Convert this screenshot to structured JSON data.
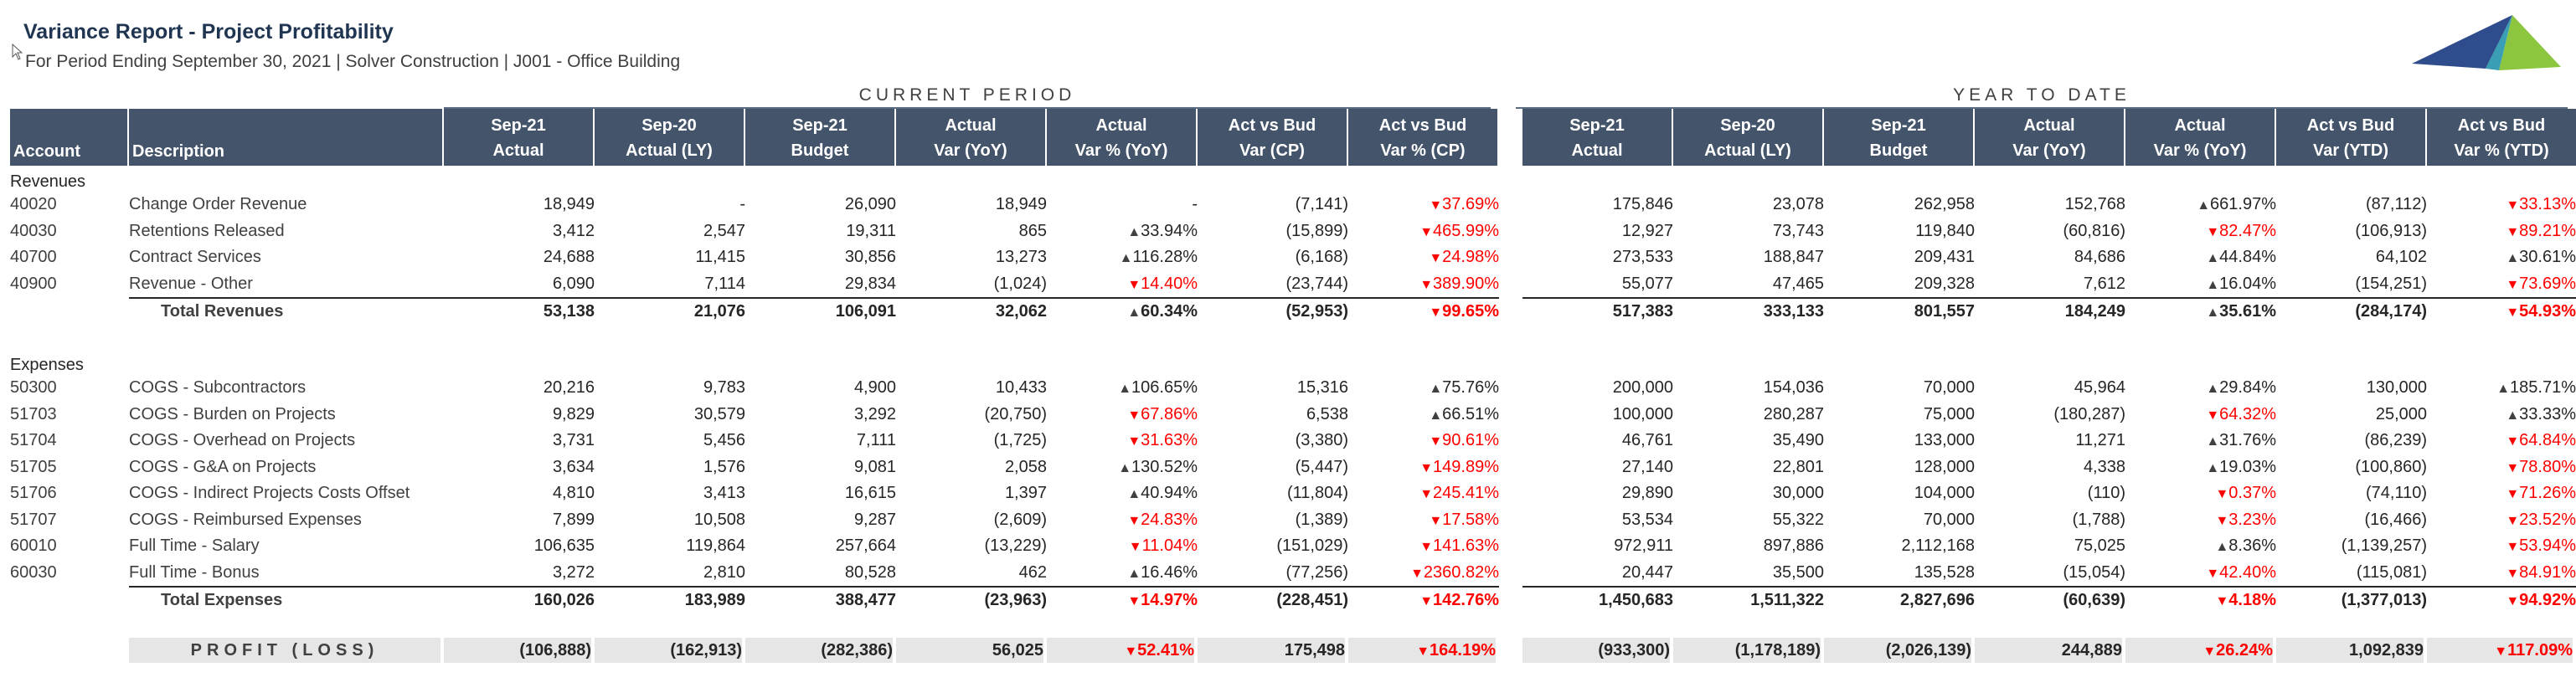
{
  "header": {
    "title": "Variance Report - Project Profitability",
    "subtitle": "For Period Ending September 30, 2021 | Solver Construction | J001 - Office Building"
  },
  "groups": {
    "current": "CURRENT PERIOD",
    "ytd": "YEAR TO DATE"
  },
  "columns": {
    "account": "Account",
    "description": "Description",
    "current": [
      [
        "Sep-21",
        "Actual"
      ],
      [
        "Sep-20",
        "Actual (LY)"
      ],
      [
        "Sep-21",
        "Budget"
      ],
      [
        "Actual",
        "Var (YoY)"
      ],
      [
        "Actual",
        "Var % (YoY)"
      ],
      [
        "Act vs Bud",
        "Var (CP)"
      ],
      [
        "Act vs Bud",
        "Var % (CP)"
      ]
    ],
    "ytd": [
      [
        "Sep-21",
        "Actual"
      ],
      [
        "Sep-20",
        "Actual (LY)"
      ],
      [
        "Sep-21",
        "Budget"
      ],
      [
        "Actual",
        "Var (YoY)"
      ],
      [
        "Actual",
        "Var % (YoY)"
      ],
      [
        "Act vs Bud",
        "Var (YTD)"
      ],
      [
        "Act vs Bud",
        "Var % (YTD)"
      ]
    ]
  },
  "sections": [
    {
      "label": "Revenues",
      "rows": [
        {
          "account": "40020",
          "description": "Change Order Revenue",
          "cp": [
            "18,949",
            "-",
            "26,090",
            "18,949",
            "-",
            "(7,141)",
            "37.69%"
          ],
          "cp_dir": [
            "",
            "dn"
          ],
          "ytd": [
            "175,846",
            "23,078",
            "262,958",
            "152,768",
            "661.97%",
            "(87,112)",
            "33.13%"
          ],
          "ytd_dir": [
            "up",
            "dn"
          ]
        },
        {
          "account": "40030",
          "description": "Retentions Released",
          "cp": [
            "3,412",
            "2,547",
            "19,311",
            "865",
            "33.94%",
            "(15,899)",
            "465.99%"
          ],
          "cp_dir": [
            "up",
            "dn"
          ],
          "ytd": [
            "12,927",
            "73,743",
            "119,840",
            "(60,816)",
            "82.47%",
            "(106,913)",
            "89.21%"
          ],
          "ytd_dir": [
            "dn",
            "dn"
          ]
        },
        {
          "account": "40700",
          "description": "Contract Services",
          "cp": [
            "24,688",
            "11,415",
            "30,856",
            "13,273",
            "116.28%",
            "(6,168)",
            "24.98%"
          ],
          "cp_dir": [
            "up",
            "dn"
          ],
          "ytd": [
            "273,533",
            "188,847",
            "209,431",
            "84,686",
            "44.84%",
            "64,102",
            "30.61%"
          ],
          "ytd_dir": [
            "up",
            "up"
          ]
        },
        {
          "account": "40900",
          "description": "Revenue - Other",
          "cp": [
            "6,090",
            "7,114",
            "29,834",
            "(1,024)",
            "14.40%",
            "(23,744)",
            "389.90%"
          ],
          "cp_dir": [
            "dn",
            "dn"
          ],
          "ytd": [
            "55,077",
            "47,465",
            "209,328",
            "7,612",
            "16.04%",
            "(154,251)",
            "73.69%"
          ],
          "ytd_dir": [
            "up",
            "dn"
          ]
        }
      ],
      "total": {
        "label": "Total Revenues",
        "cp": [
          "53,138",
          "21,076",
          "106,091",
          "32,062",
          "60.34%",
          "(52,953)",
          "99.65%"
        ],
        "cp_dir": [
          "up",
          "dn"
        ],
        "ytd": [
          "517,383",
          "333,133",
          "801,557",
          "184,249",
          "35.61%",
          "(284,174)",
          "54.93%"
        ],
        "ytd_dir": [
          "up",
          "dn"
        ]
      }
    },
    {
      "label": "Expenses",
      "rows": [
        {
          "account": "50300",
          "description": "COGS - Subcontractors",
          "cp": [
            "20,216",
            "9,783",
            "4,900",
            "10,433",
            "106.65%",
            "15,316",
            "75.76%"
          ],
          "cp_dir": [
            "up",
            "up"
          ],
          "ytd": [
            "200,000",
            "154,036",
            "70,000",
            "45,964",
            "29.84%",
            "130,000",
            "185.71%"
          ],
          "ytd_dir": [
            "up",
            "up"
          ]
        },
        {
          "account": "51703",
          "description": "COGS - Burden on Projects",
          "cp": [
            "9,829",
            "30,579",
            "3,292",
            "(20,750)",
            "67.86%",
            "6,538",
            "66.51%"
          ],
          "cp_dir": [
            "dn",
            "up"
          ],
          "ytd": [
            "100,000",
            "280,287",
            "75,000",
            "(180,287)",
            "64.32%",
            "25,000",
            "33.33%"
          ],
          "ytd_dir": [
            "dn",
            "up"
          ]
        },
        {
          "account": "51704",
          "description": "COGS - Overhead on Projects",
          "cp": [
            "3,731",
            "5,456",
            "7,111",
            "(1,725)",
            "31.63%",
            "(3,380)",
            "90.61%"
          ],
          "cp_dir": [
            "dn",
            "dn"
          ],
          "ytd": [
            "46,761",
            "35,490",
            "133,000",
            "11,271",
            "31.76%",
            "(86,239)",
            "64.84%"
          ],
          "ytd_dir": [
            "up",
            "dn"
          ]
        },
        {
          "account": "51705",
          "description": "COGS - G&A on Projects",
          "cp": [
            "3,634",
            "1,576",
            "9,081",
            "2,058",
            "130.52%",
            "(5,447)",
            "149.89%"
          ],
          "cp_dir": [
            "up",
            "dn"
          ],
          "ytd": [
            "27,140",
            "22,801",
            "128,000",
            "4,338",
            "19.03%",
            "(100,860)",
            "78.80%"
          ],
          "ytd_dir": [
            "up",
            "dn"
          ]
        },
        {
          "account": "51706",
          "description": "COGS - Indirect Projects Costs Offset",
          "cp": [
            "4,810",
            "3,413",
            "16,615",
            "1,397",
            "40.94%",
            "(11,804)",
            "245.41%"
          ],
          "cp_dir": [
            "up",
            "dn"
          ],
          "ytd": [
            "29,890",
            "30,000",
            "104,000",
            "(110)",
            "0.37%",
            "(74,110)",
            "71.26%"
          ],
          "ytd_dir": [
            "dn",
            "dn"
          ]
        },
        {
          "account": "51707",
          "description": "COGS - Reimbursed Expenses",
          "cp": [
            "7,899",
            "10,508",
            "9,287",
            "(2,609)",
            "24.83%",
            "(1,389)",
            "17.58%"
          ],
          "cp_dir": [
            "dn",
            "dn"
          ],
          "ytd": [
            "53,534",
            "55,322",
            "70,000",
            "(1,788)",
            "3.23%",
            "(16,466)",
            "23.52%"
          ],
          "ytd_dir": [
            "dn",
            "dn"
          ]
        },
        {
          "account": "60010",
          "description": "Full Time - Salary",
          "cp": [
            "106,635",
            "119,864",
            "257,664",
            "(13,229)",
            "11.04%",
            "(151,029)",
            "141.63%"
          ],
          "cp_dir": [
            "dn",
            "dn"
          ],
          "ytd": [
            "972,911",
            "897,886",
            "2,112,168",
            "75,025",
            "8.36%",
            "(1,139,257)",
            "53.94%"
          ],
          "ytd_dir": [
            "up",
            "dn"
          ]
        },
        {
          "account": "60030",
          "description": "Full Time - Bonus",
          "cp": [
            "3,272",
            "2,810",
            "80,528",
            "462",
            "16.46%",
            "(77,256)",
            "2360.82%"
          ],
          "cp_dir": [
            "up",
            "dn"
          ],
          "ytd": [
            "20,447",
            "35,500",
            "135,528",
            "(15,054)",
            "42.40%",
            "(115,081)",
            "84.91%"
          ],
          "ytd_dir": [
            "dn",
            "dn"
          ]
        }
      ],
      "total": {
        "label": "Total Expenses",
        "cp": [
          "160,026",
          "183,989",
          "388,477",
          "(23,963)",
          "14.97%",
          "(228,451)",
          "142.76%"
        ],
        "cp_dir": [
          "dn",
          "dn"
        ],
        "ytd": [
          "1,450,683",
          "1,511,322",
          "2,827,696",
          "(60,639)",
          "4.18%",
          "(1,377,013)",
          "94.92%"
        ],
        "ytd_dir": [
          "dn",
          "dn"
        ]
      }
    }
  ],
  "profit": {
    "label": "PROFIT (LOSS)",
    "cp": [
      "(106,888)",
      "(162,913)",
      "(282,386)",
      "56,025",
      "52.41%",
      "175,498",
      "164.19%"
    ],
    "cp_dir": [
      "dn",
      "dn"
    ],
    "ytd": [
      "(933,300)",
      "(1,178,189)",
      "(2,026,139)",
      "244,889",
      "26.24%",
      "1,092,839",
      "117.09%"
    ],
    "ytd_dir": [
      "dn",
      "dn"
    ]
  },
  "colors": {
    "header_bg": "#44546a",
    "negative": "#ff0000",
    "profit_bg": "#e6e6e6",
    "logo_blue": "#2f4d8c",
    "logo_green": "#8cc63f",
    "logo_teal": "#3a9fb5"
  }
}
